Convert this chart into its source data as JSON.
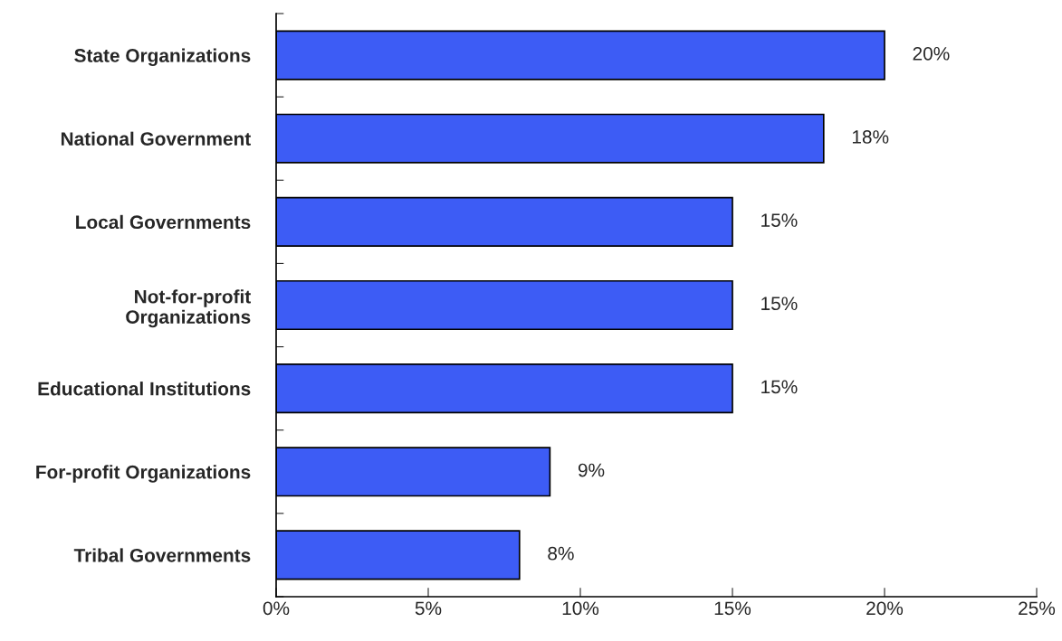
{
  "chart_data": {
    "type": "bar",
    "orientation": "horizontal",
    "categories": [
      "State Organizations",
      "National Government",
      "Local Governments",
      "Not-for-profit\nOrganizations",
      "Educational Institutions",
      "For-profit Organizations",
      "Tribal Governments"
    ],
    "values": [
      20,
      18,
      15,
      15,
      15,
      9,
      8
    ],
    "value_labels": [
      "20%",
      "18%",
      "15%",
      "15%",
      "15%",
      "9%",
      "8%"
    ],
    "color": "#3d5cf5",
    "xlim": [
      0,
      25
    ],
    "xticks": [
      {
        "value": 0,
        "label": "0%"
      },
      {
        "value": 5,
        "label": "5%"
      },
      {
        "value": 10,
        "label": "10%"
      },
      {
        "value": 15,
        "label": "15%"
      },
      {
        "value": 20,
        "label": "20%"
      },
      {
        "value": 25,
        "label": "25%"
      }
    ],
    "grid": false,
    "legend": false
  }
}
